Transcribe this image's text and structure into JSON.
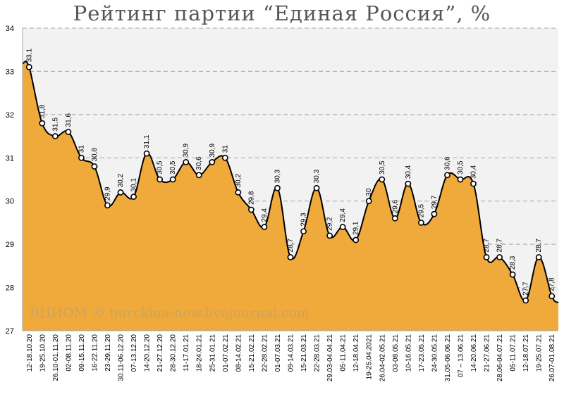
{
  "page": {
    "watermark": "ВЦИОМ © burckina-new.livejournal.com"
  },
  "chart_data": {
    "type": "area",
    "title": "Рейтинг партии “Единая Россия”, %",
    "xlabel": "",
    "ylabel": "",
    "ylim": [
      27,
      34
    ],
    "yticks": [
      27,
      28,
      29,
      30,
      31,
      32,
      33,
      34
    ],
    "grid": true,
    "colors": {
      "area": "#F0A93B",
      "line": "#000000",
      "marker_fill": "#ffffff",
      "plot_bg": "#f2f2f2",
      "grid": "#a6a6a6"
    },
    "categories": [
      "12-18.10.20",
      "19-25.10.20",
      "26.10-01.11.20",
      "02-08.11.20",
      "09-15.11.20",
      "16-22.11.20",
      "23-29.11.20",
      "30.11-06.12.20",
      "07-13.12.20",
      "14-20.12.20",
      "21-27.12.20",
      "28-30.12.20",
      "11-17.01.21",
      "18-24.01.21",
      "25-31.01.21",
      "01-07.02.21",
      "08-14.02.21",
      "15-21.02.21",
      "22-28.02.21",
      "01-07.03.21",
      "09-14.03.21",
      "15-21.03.21",
      "22-28.03.21",
      "29.03-04.04.21",
      "05-11.04.21",
      "12-18.04.21",
      "19-25.04.2021",
      "26.04-02.05.21",
      "03-08.05.21",
      "10-16.05.21",
      "17-23.05.21",
      "24-30.05.21",
      "31.05-06.06.21",
      "07 – 13.06.21",
      "14-20.06.21",
      "21-27.06.21",
      "28.06-04.07.21",
      "05-11.07.21",
      "12-18.07.21",
      "19-25.07.21",
      "26.07-01.08.21"
    ],
    "values": [
      33.1,
      31.8,
      31.5,
      31.6,
      31.0,
      30.8,
      29.9,
      30.2,
      30.1,
      31.1,
      30.5,
      30.5,
      30.9,
      30.6,
      30.9,
      31.0,
      30.2,
      29.8,
      29.4,
      30.3,
      28.7,
      29.3,
      30.3,
      29.2,
      29.4,
      29.1,
      30.0,
      30.5,
      29.6,
      30.4,
      29.5,
      29.7,
      30.6,
      30.5,
      30.4,
      28.7,
      28.7,
      28.3,
      27.7,
      28.7,
      27.8
    ],
    "value_labels": [
      "33,1",
      "31,8",
      "31,5",
      "31,6",
      "31",
      "30,8",
      "29,9",
      "30,2",
      "30,1",
      "31,1",
      "30,5",
      "30,5",
      "30,9",
      "30,6",
      "30,9",
      "31",
      "30,2",
      "29,8",
      "29,4",
      "30,3",
      "28,7",
      "29,3",
      "30,3",
      "29,2",
      "29,4",
      "29,1",
      "30",
      "30,5",
      "29,6",
      "30,4",
      "29,5",
      "29,7",
      "30,6",
      "30,5",
      "30,4",
      "28,7",
      "28,7",
      "28,3",
      "27,7",
      "28,7",
      "27,8"
    ]
  }
}
